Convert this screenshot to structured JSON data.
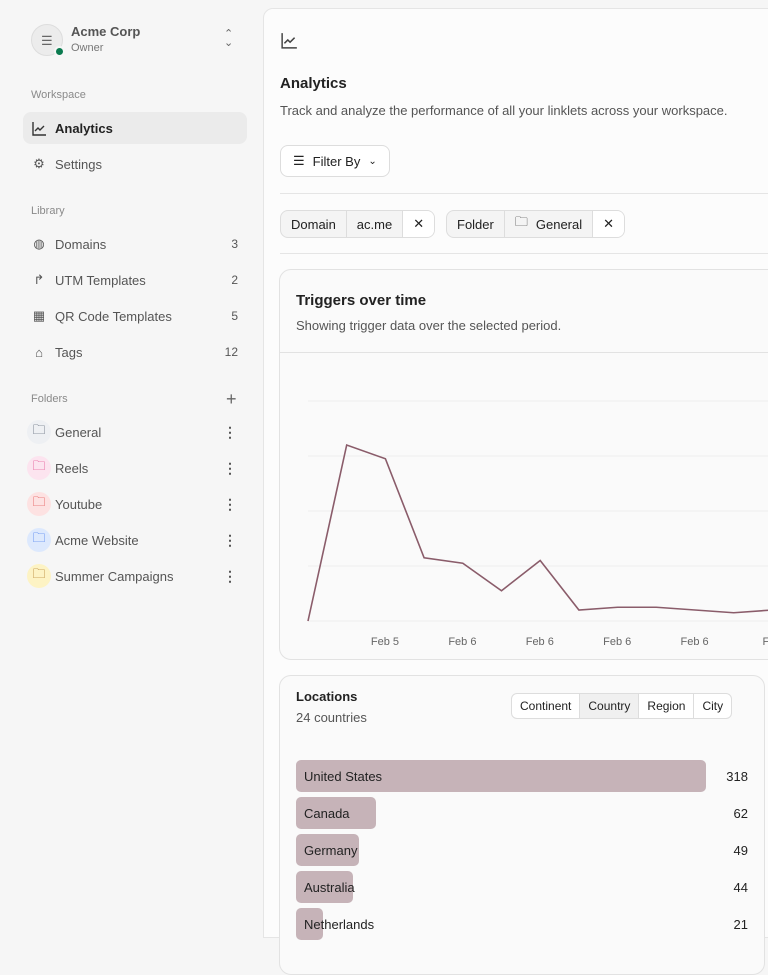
{
  "account": {
    "name": "Acme Corp",
    "role": "Owner",
    "status_color": "#0a7a4f"
  },
  "sidebar": {
    "workspace_label": "Workspace",
    "workspace": [
      {
        "label": "Analytics",
        "icon": "chart-line-icon",
        "active": true
      },
      {
        "label": "Settings",
        "icon": "gear-icon"
      }
    ],
    "library_label": "Library",
    "library": [
      {
        "label": "Domains",
        "count": "3",
        "icon": "globe-icon"
      },
      {
        "label": "UTM Templates",
        "count": "2",
        "icon": "share-arrow-icon"
      },
      {
        "label": "QR Code Templates",
        "count": "5",
        "icon": "qr-code-icon"
      },
      {
        "label": "Tags",
        "count": "12",
        "icon": "tag-icon"
      }
    ],
    "folders_label": "Folders",
    "folders": [
      {
        "label": "General",
        "color": "#334155",
        "bg": "#eef0f3"
      },
      {
        "label": "Reels",
        "color": "#db2777",
        "bg": "#fce4ef"
      },
      {
        "label": "Youtube",
        "color": "#dc2626",
        "bg": "#fde2e2"
      },
      {
        "label": "Acme Website",
        "color": "#2563eb",
        "bg": "#dde9fd"
      },
      {
        "label": "Summer Campaigns",
        "color": "#a16207",
        "bg": "#fdf3c4"
      }
    ]
  },
  "header": {
    "title": "Analytics",
    "subtitle": "Track and analyze the performance of all your linklets across your workspace.",
    "filter_label": "Filter By"
  },
  "filters": [
    {
      "key": "Domain",
      "value": "ac.me"
    },
    {
      "key": "Folder",
      "value": "General"
    }
  ],
  "triggers": {
    "title": "Triggers over time",
    "subtitle": "Showing trigger data over the selected period."
  },
  "chart_data": {
    "type": "line",
    "title": "Triggers over time",
    "color": "#8a5c6a",
    "grid": true,
    "ylim": [
      0,
      4
    ],
    "x_tick_labels": [
      "Feb 5",
      "Feb 6",
      "Feb 6",
      "Feb 6",
      "Feb 6",
      "Feb"
    ],
    "values": [
      0,
      3.2,
      2.95,
      1.15,
      1.05,
      0.55,
      1.1,
      0.2,
      0.25,
      0.25,
      0.2,
      0.15,
      0.2
    ]
  },
  "locations": {
    "title": "Locations",
    "subtitle": "24 countries",
    "tabs": [
      "Continent",
      "Country",
      "Region",
      "City"
    ],
    "active_tab": "Country",
    "bar_color": "#c6b3b8",
    "rows": [
      {
        "label": "United States",
        "value": 318
      },
      {
        "label": "Canada",
        "value": 62
      },
      {
        "label": "Germany",
        "value": 49
      },
      {
        "label": "Australia",
        "value": 44
      },
      {
        "label": "Netherlands",
        "value": 21
      }
    ]
  }
}
